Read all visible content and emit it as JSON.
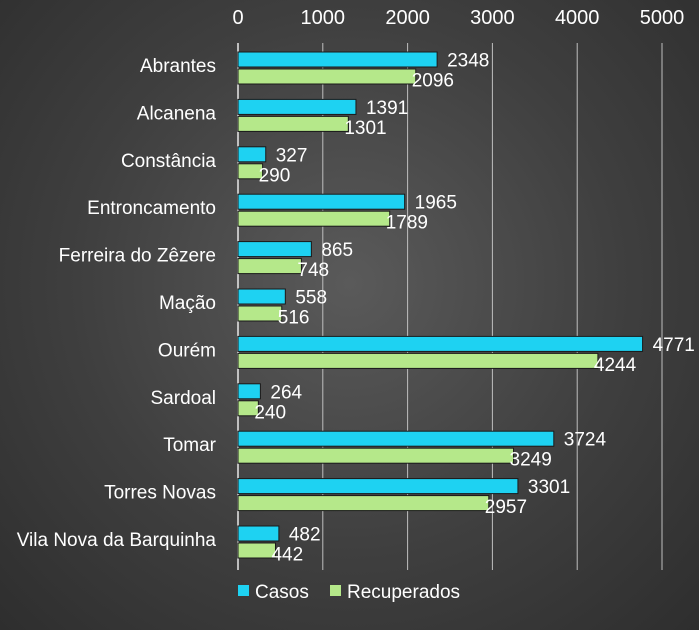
{
  "chart_data": {
    "type": "bar",
    "orientation": "horizontal",
    "title": "",
    "xlabel": "",
    "ylabel": "",
    "xlim": [
      0,
      5000
    ],
    "x_ticks": [
      "0",
      "1000",
      "2000",
      "3000",
      "4000",
      "5000"
    ],
    "x_axis_position": "top",
    "grid": true,
    "legend_position": "bottom",
    "categories": [
      "Abrantes",
      "Alcanena",
      "Constância",
      "Entroncamento",
      "Ferreira do Zêzere",
      "Mação",
      "Ourém",
      "Sardoal",
      "Tomar",
      "Torres Novas",
      "Vila Nova da Barquinha"
    ],
    "series": [
      {
        "name": "Casos",
        "color": "#1ed2f2",
        "values": [
          2348,
          1391,
          327,
          1965,
          865,
          558,
          4771,
          264,
          3724,
          3301,
          482
        ]
      },
      {
        "name": "Recuperados",
        "color": "#b5e88a",
        "values": [
          2096,
          1301,
          290,
          1789,
          748,
          516,
          4244,
          240,
          3249,
          2957,
          442
        ]
      }
    ]
  }
}
